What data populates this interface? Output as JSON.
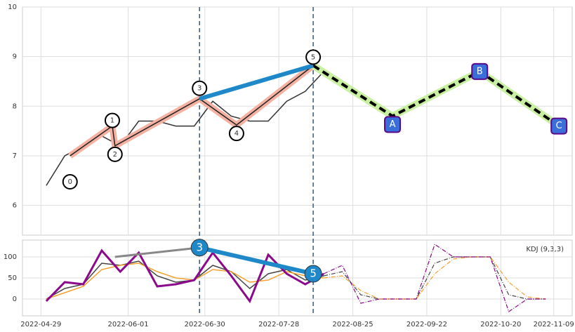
{
  "chart_data": [
    {
      "type": "line",
      "x": [
        "2022-05-01",
        "2022-05-08",
        "2022-05-15",
        "2022-05-22",
        "2022-05-29",
        "2022-06-05",
        "2022-06-12",
        "2022-06-19",
        "2022-06-26",
        "2022-07-03",
        "2022-07-10",
        "2022-07-17",
        "2022-07-24",
        "2022-07-31",
        "2022-08-07",
        "2022-08-14"
      ],
      "series": [
        {
          "color": "#333333",
          "values": [
            6.4,
            7.0,
            7.2,
            7.4,
            7.2,
            7.7,
            7.7,
            7.6,
            7.6,
            8.1,
            7.8,
            7.7,
            7.7,
            8.1,
            8.3,
            8.7
          ]
        }
      ],
      "waves": {
        "labels": [
          "0",
          "1",
          "2",
          "3",
          "4",
          "5",
          "A",
          "B",
          "C"
        ],
        "x": [
          "2022-05-10",
          "2022-05-26",
          "2022-05-27",
          "2022-06-28",
          "2022-07-12",
          "2022-08-10",
          "2022-09-09",
          "2022-10-12",
          "2022-11-11"
        ],
        "values": [
          7.0,
          7.6,
          7.2,
          8.15,
          7.62,
          8.82,
          7.8,
          8.7,
          7.6
        ]
      },
      "xlim": [
        "2022-04-22",
        "2022-11-16"
      ],
      "xticks": [
        "2022-04-29",
        "2022-06-01",
        "2022-06-30",
        "2022-07-28",
        "2022-08-25",
        "2022-09-22",
        "2022-10-20",
        "2022-11-09"
      ],
      "ylim": [
        5.4,
        10
      ],
      "yticks": [
        6,
        7,
        8,
        9,
        10
      ],
      "grid": true
    },
    {
      "type": "line",
      "legend_text": "KDJ (9,3,3)",
      "x": [
        "2022-05-01",
        "2022-05-08",
        "2022-05-15",
        "2022-05-22",
        "2022-05-29",
        "2022-06-05",
        "2022-06-12",
        "2022-06-19",
        "2022-06-26",
        "2022-07-03",
        "2022-07-10",
        "2022-07-17",
        "2022-07-24",
        "2022-07-31",
        "2022-08-07",
        "2022-08-14",
        "2022-08-21",
        "2022-08-28",
        "2022-09-04",
        "2022-09-11",
        "2022-09-18",
        "2022-09-25",
        "2022-10-02",
        "2022-10-09",
        "2022-10-16",
        "2022-10-23",
        "2022-10-30",
        "2022-11-06"
      ],
      "series": [
        {
          "color": "#444444",
          "dashed": false,
          "values": [
            0,
            25,
            35,
            85,
            80,
            90,
            55,
            40,
            45,
            80,
            65,
            25,
            60,
            70,
            45,
            55,
            null,
            null,
            null,
            null,
            null,
            null,
            null,
            null,
            null,
            null,
            null,
            null
          ]
        },
        {
          "color": "#f5a030",
          "dashed": false,
          "values": [
            0,
            15,
            30,
            70,
            80,
            85,
            65,
            50,
            45,
            70,
            65,
            40,
            45,
            65,
            55,
            50,
            null,
            null,
            null,
            null,
            null,
            null,
            null,
            null,
            null,
            null,
            null,
            null
          ]
        },
        {
          "color": "#8b0a8b",
          "dashed": false,
          "values": [
            -5,
            40,
            35,
            115,
            65,
            110,
            30,
            35,
            45,
            110,
            55,
            -5,
            105,
            60,
            35,
            60,
            null,
            null,
            null,
            null,
            null,
            null,
            null,
            null,
            null,
            null,
            null,
            null
          ]
        },
        {
          "color": "#444444",
          "dashed": true,
          "values": [
            null,
            null,
            null,
            null,
            null,
            null,
            null,
            null,
            null,
            null,
            null,
            null,
            null,
            null,
            null,
            55,
            65,
            10,
            0,
            0,
            0,
            85,
            100,
            100,
            100,
            10,
            0,
            0
          ]
        },
        {
          "color": "#f5a030",
          "dashed": true,
          "values": [
            null,
            null,
            null,
            null,
            null,
            null,
            null,
            null,
            null,
            null,
            null,
            null,
            null,
            null,
            null,
            50,
            55,
            20,
            0,
            0,
            0,
            60,
            95,
            100,
            100,
            40,
            5,
            0
          ]
        },
        {
          "color": "#8b0a8b",
          "dashed": true,
          "values": [
            null,
            null,
            null,
            null,
            null,
            null,
            null,
            null,
            null,
            null,
            null,
            null,
            null,
            null,
            null,
            60,
            80,
            -10,
            0,
            0,
            0,
            130,
            100,
            100,
            100,
            -30,
            0,
            0
          ]
        }
      ],
      "divergences": [
        {
          "color": "#888888",
          "x": [
            "2022-05-27",
            "2022-06-28"
          ],
          "values": [
            100,
            122
          ]
        },
        {
          "color": "#1e88c8",
          "x": [
            "2022-06-28",
            "2022-08-10"
          ],
          "values": [
            122,
            60
          ],
          "labels": [
            "3",
            "5"
          ]
        }
      ],
      "xlim": [
        "2022-04-22",
        "2022-11-16"
      ],
      "xticks": [
        "2022-04-29",
        "2022-06-01",
        "2022-06-30",
        "2022-07-28",
        "2022-08-25",
        "2022-09-22",
        "2022-10-20",
        "2022-11-09"
      ],
      "ylim": [
        -40,
        140
      ],
      "yticks": [
        0,
        50,
        100
      ],
      "grid": true
    }
  ]
}
